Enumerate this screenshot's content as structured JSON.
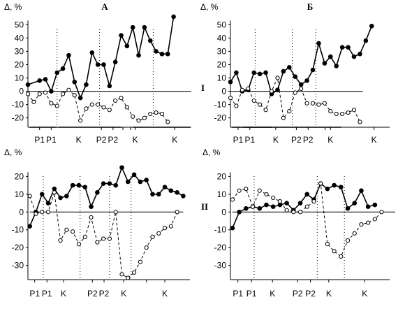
{
  "figure": {
    "row_labels": [
      "I",
      "II"
    ]
  },
  "chart_data": [
    {
      "type": "line",
      "title": "А",
      "ylabel": "Δ, %",
      "yticks": [
        -20,
        -10,
        0,
        10,
        20,
        30,
        40,
        50
      ],
      "ylim": [
        -27,
        57
      ],
      "x_categories": [
        "P1",
        "P1",
        "K",
        "P2",
        "P2",
        "K",
        "K"
      ],
      "x_category_positions": [
        2,
        4,
        8.7,
        12.6,
        14.6,
        18.4,
        25.2
      ],
      "xlim": [
        0,
        29
      ],
      "x_tick_positions": [
        2,
        4,
        12.6,
        14.6,
        16.3,
        17.6,
        18.4,
        25.2
      ],
      "dividers": [
        5,
        12.3,
        21.5
      ],
      "bottom_bars": [
        [
          0.3,
          5
        ],
        [
          5.2,
          16
        ],
        [
          18,
          27.8
        ]
      ],
      "zero_line": [
        0,
        28
      ],
      "series": [
        {
          "style": "solid",
          "marker": "filled-circle",
          "x": [
            0,
            2,
            3,
            4,
            5,
            6,
            7,
            8,
            9,
            10,
            11,
            12,
            13,
            14,
            15,
            16,
            17,
            18,
            19,
            20,
            21,
            22,
            23,
            24,
            25,
            26,
            27,
            28
          ],
          "y": [
            5,
            8,
            9,
            0,
            14,
            17,
            27,
            7,
            -5,
            5,
            29,
            20,
            20,
            4,
            22,
            42,
            34,
            48,
            27,
            48,
            38,
            30,
            28,
            28,
            56,
            null,
            null,
            null
          ]
        },
        {
          "style": "dashed",
          "marker": "open-circle",
          "x": [
            0,
            1,
            2,
            3,
            4,
            5,
            6,
            7,
            8,
            9,
            10,
            11,
            12,
            13,
            14,
            15,
            16,
            17,
            18,
            19,
            20,
            21,
            22,
            23,
            24,
            25
          ],
          "y": [
            -2,
            -8,
            -2,
            -1,
            -9,
            -11,
            -2,
            1,
            -3,
            -22,
            -13,
            -10,
            -10,
            -12,
            -14,
            -7,
            -5,
            -12,
            -19,
            -22,
            -20,
            -17,
            -16,
            -17,
            -23,
            null
          ]
        }
      ]
    },
    {
      "type": "line",
      "title": "Б",
      "ylabel": "Δ, %",
      "yticks": [
        -20,
        -10,
        0,
        10,
        20,
        30,
        40,
        50
      ],
      "ylim": [
        -27,
        57
      ],
      "x_categories": [
        "P1",
        "P1",
        "K",
        "P2",
        "P2",
        "K",
        "K"
      ],
      "x_category_positions": [
        1.3,
        3.3,
        7.7,
        11.2,
        13.2,
        17.0,
        24.4
      ],
      "xlim": [
        0,
        28
      ],
      "x_tick_positions": [
        1.3,
        3.3,
        7.7,
        11.2,
        13.2,
        16.1,
        17.0,
        24.4
      ],
      "dividers": [
        4.2,
        10.5,
        14.5
      ],
      "bottom_bars": [
        [
          0.2,
          7
        ],
        [
          2.2,
          18.8
        ]
      ],
      "zero_line": [
        0,
        22.5
      ],
      "series": [
        {
          "style": "solid",
          "marker": "filled-circle",
          "x": [
            0,
            1,
            2,
            3,
            4,
            5,
            6,
            7,
            8,
            9,
            10,
            11,
            12,
            13,
            14,
            15,
            16,
            17,
            18,
            19,
            20,
            21,
            22,
            23,
            24,
            25,
            26
          ],
          "y": [
            7,
            14,
            0,
            1,
            14,
            13,
            14,
            -2,
            1,
            15,
            18,
            11,
            5,
            8,
            16,
            36,
            21,
            26,
            19,
            33,
            33,
            26,
            28,
            38,
            49,
            null,
            null
          ]
        },
        {
          "style": "dashed",
          "marker": "open-circle",
          "x": [
            0,
            1,
            2,
            3,
            4,
            5,
            6,
            7,
            8,
            9,
            10,
            11,
            12,
            13,
            14,
            15,
            16,
            17,
            18,
            19,
            20,
            21,
            22,
            23,
            24,
            25
          ],
          "y": [
            -5,
            -11,
            1,
            2,
            -7,
            -10,
            -14,
            0,
            10,
            -20,
            -15,
            -1,
            2,
            -9,
            -9,
            -10,
            -9,
            -15,
            -17,
            -17,
            -16,
            -14,
            -23,
            null,
            null,
            null
          ]
        }
      ]
    },
    {
      "type": "line",
      "title": "",
      "ylabel": "Δ, %",
      "yticks": [
        -30,
        -20,
        -10,
        0,
        10,
        20
      ],
      "ylim": [
        -38,
        28
      ],
      "x_categories": [
        "P1",
        "P1",
        "K",
        "P2",
        "P2",
        "K",
        "K"
      ],
      "x_category_positions": [
        0.8,
        2.8,
        5.5,
        10.2,
        12.1,
        15.3,
        22.0
      ],
      "xlim": [
        -0.3,
        27
      ],
      "x_tick_positions": [
        0.8,
        2.8,
        5.5,
        10.2,
        12.1,
        15.3,
        19.0,
        22.0
      ],
      "dividers": [
        2.2,
        8.2,
        13.0,
        16.5
      ],
      "bottom_bars": [],
      "zero_line": [
        0,
        25
      ],
      "series": [
        {
          "style": "solid",
          "marker": "filled-circle",
          "x": [
            0,
            1,
            2,
            3,
            4,
            5,
            6,
            7,
            8,
            9,
            10,
            11,
            12,
            13,
            14,
            15,
            16,
            17,
            18,
            19,
            20,
            21,
            22,
            23,
            24,
            25,
            26
          ],
          "y": [
            -8,
            0,
            10,
            5,
            13,
            8,
            9,
            15,
            15,
            14,
            3,
            11,
            16,
            16,
            15,
            25,
            17,
            21,
            17,
            18,
            10,
            10,
            14,
            12,
            11,
            9,
            null
          ]
        },
        {
          "style": "dashed",
          "marker": "open-circle",
          "x": [
            0,
            1,
            2,
            3,
            4,
            5,
            6,
            7,
            8,
            9,
            10,
            11,
            12,
            13,
            14,
            15,
            16,
            17,
            18,
            19,
            20,
            21,
            22,
            23,
            24,
            25
          ],
          "y": [
            9,
            -1,
            0,
            0,
            11,
            -16,
            -10,
            -11,
            -18,
            -14,
            -3,
            -17,
            -15,
            -15,
            0,
            -35,
            -37,
            -34,
            -28,
            -20,
            -14,
            -12,
            -9,
            -8,
            0,
            null
          ]
        }
      ]
    },
    {
      "type": "line",
      "title": "",
      "ylabel": "Δ, %",
      "yticks": [
        -30,
        -20,
        -10,
        0,
        10,
        20
      ],
      "ylim": [
        -38,
        28
      ],
      "x_categories": [
        "P1",
        "P1",
        "K",
        "P2",
        "P2",
        "K",
        "K"
      ],
      "x_category_positions": [
        0.8,
        2.8,
        5.9,
        9.6,
        11.5,
        14.2,
        19.5
      ],
      "xlim": [
        -0.3,
        24
      ],
      "x_tick_positions": [
        0.8,
        2.8,
        5.9,
        9.6,
        11.5,
        14.2,
        19.5
      ],
      "dividers": [
        3.2,
        12.5,
        16.5
      ],
      "bottom_bars": [],
      "zero_line": [
        0,
        24
      ],
      "series": [
        {
          "style": "solid",
          "marker": "filled-circle",
          "x": [
            0,
            1,
            2,
            3,
            4,
            5,
            6,
            7,
            8,
            9,
            10,
            11,
            12,
            13,
            14,
            15,
            16,
            17,
            18,
            19,
            20,
            21,
            22,
            23
          ],
          "y": [
            -9,
            0,
            2,
            3,
            2,
            4,
            3,
            4,
            5,
            1,
            5,
            10,
            7,
            16,
            13,
            15,
            14,
            2,
            5,
            12,
            3,
            4,
            null,
            null
          ]
        },
        {
          "style": "dashed",
          "marker": "open-circle",
          "x": [
            0,
            1,
            2,
            3,
            4,
            5,
            6,
            7,
            8,
            9,
            10,
            11,
            12,
            13,
            14,
            15,
            16,
            17,
            18,
            19,
            20,
            21,
            22
          ],
          "y": [
            7,
            12,
            13,
            3,
            12,
            10,
            8,
            6,
            1,
            0,
            0,
            3,
            6,
            16,
            -18,
            -22,
            -25,
            -16,
            -12,
            -7,
            -6,
            -4,
            0
          ]
        }
      ]
    }
  ]
}
